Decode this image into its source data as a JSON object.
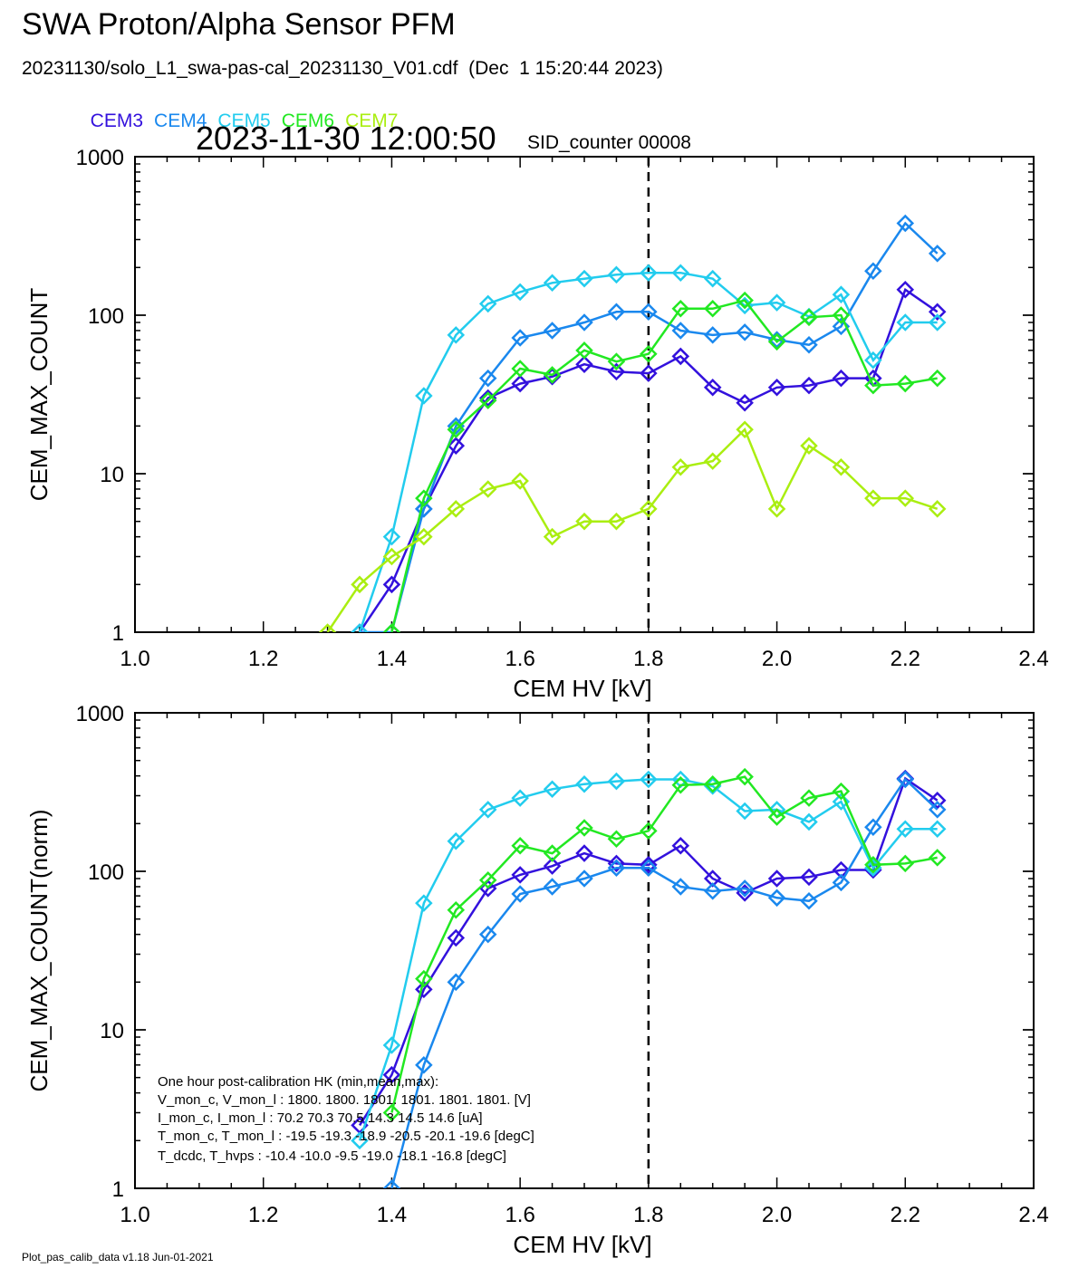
{
  "header": {
    "title": "SWA Proton/Alpha Sensor PFM",
    "subtitle": "20231130/solo_L1_swa-pas-cal_20231130_V01.cdf  (Dec  1 15:20:44 2023)",
    "timestamp": "2023-11-30 12:00:50",
    "sid_counter": "SID_counter 00008"
  },
  "legend": [
    {
      "label": "CEM3",
      "color": "#3311dd"
    },
    {
      "label": "CEM4",
      "color": "#1a88ee"
    },
    {
      "label": "CEM5",
      "color": "#22ccee"
    },
    {
      "label": "CEM6",
      "color": "#22e822"
    },
    {
      "label": "CEM7",
      "color": "#aaee11"
    }
  ],
  "hk_box": {
    "title": "One hour post-calibration HK (min,mean,max):",
    "rows": [
      "V_mon_c, V_mon_l :   1800.  1800.  1801.      1801.  1801.  1801.  [V]",
      "I_mon_c,  I_mon_l :     70.2   70.3   70.5        14.3   14.5   14.6  [uA]",
      "T_mon_c, T_mon_l :   -19.5  -19.3  -18.9       -20.5  -20.1  -19.6  [degC]",
      "T_dcdc,    T_hvps :     -10.4  -10.0   -9.5        -19.0  -18.1  -16.8  [degC]"
    ]
  },
  "footer": "Plot_pas_calib_data v1.18 Jun-01-2021",
  "chart_data": [
    {
      "type": "line",
      "title": "",
      "xlabel": "CEM HV [kV]",
      "ylabel": "CEM_MAX_COUNT",
      "xlim": [
        1.0,
        2.4
      ],
      "ylim": [
        1,
        1000
      ],
      "yscale": "log",
      "xticks": [
        "1.0",
        "1.2",
        "1.4",
        "1.6",
        "1.8",
        "2.0",
        "2.2",
        "2.4"
      ],
      "yticks": [
        "1",
        "10",
        "100",
        "1000"
      ],
      "vline_x": 1.8,
      "series": [
        {
          "name": "CEM3",
          "color": "#3311dd",
          "x": [
            1.35,
            1.4,
            1.45,
            1.5,
            1.55,
            1.6,
            1.65,
            1.7,
            1.75,
            1.8,
            1.85,
            1.9,
            1.95,
            2.0,
            2.05,
            2.1,
            2.15,
            2.2,
            2.25
          ],
          "y": [
            1,
            2,
            6,
            15,
            30,
            37,
            41,
            49,
            44,
            43,
            55,
            35,
            28,
            35,
            36,
            40,
            40,
            145,
            105
          ]
        },
        {
          "name": "CEM4",
          "color": "#1a88ee",
          "x": [
            1.35,
            1.4,
            1.45,
            1.5,
            1.55,
            1.6,
            1.65,
            1.7,
            1.75,
            1.8,
            1.85,
            1.9,
            1.95,
            2.0,
            2.05,
            2.1,
            2.15,
            2.2,
            2.25
          ],
          "y": [
            1,
            1,
            6,
            20,
            40,
            72,
            80,
            90,
            105,
            105,
            80,
            75,
            78,
            70,
            65,
            85,
            190,
            380,
            245
          ]
        },
        {
          "name": "CEM5",
          "color": "#22ccee",
          "x": [
            1.35,
            1.4,
            1.45,
            1.5,
            1.55,
            1.6,
            1.65,
            1.7,
            1.75,
            1.8,
            1.85,
            1.9,
            1.95,
            2.0,
            2.05,
            2.1,
            2.15,
            2.2,
            2.25
          ],
          "y": [
            1,
            4,
            31,
            75,
            118,
            140,
            160,
            170,
            180,
            185,
            185,
            170,
            115,
            120,
            98,
            135,
            52,
            90,
            90
          ]
        },
        {
          "name": "CEM6",
          "color": "#22e822",
          "x": [
            1.4,
            1.45,
            1.5,
            1.55,
            1.6,
            1.65,
            1.7,
            1.75,
            1.8,
            1.85,
            1.9,
            1.95,
            2.0,
            2.05,
            2.1,
            2.15,
            2.2,
            2.25
          ],
          "y": [
            1,
            7,
            19,
            29,
            46,
            42,
            60,
            51,
            57,
            110,
            110,
            124,
            68,
            97,
            100,
            36,
            37,
            40
          ]
        },
        {
          "name": "CEM7",
          "color": "#aaee11",
          "x": [
            1.3,
            1.35,
            1.4,
            1.45,
            1.5,
            1.55,
            1.6,
            1.65,
            1.7,
            1.75,
            1.8,
            1.85,
            1.9,
            1.95,
            2.0,
            2.05,
            2.1,
            2.15,
            2.2,
            2.25
          ],
          "y": [
            1,
            2,
            3,
            4,
            6,
            8,
            9,
            4,
            5,
            5,
            6,
            11,
            12,
            19,
            6,
            15,
            11,
            7,
            7,
            6
          ]
        }
      ]
    },
    {
      "type": "line",
      "title": "",
      "xlabel": "CEM HV [kV]",
      "ylabel": "CEM_MAX_COUNT(norm)",
      "xlim": [
        1.0,
        2.4
      ],
      "ylim": [
        1,
        1000
      ],
      "yscale": "log",
      "xticks": [
        "1.0",
        "1.2",
        "1.4",
        "1.6",
        "1.8",
        "2.0",
        "2.2",
        "2.4"
      ],
      "yticks": [
        "1",
        "10",
        "100",
        "1000"
      ],
      "vline_x": 1.8,
      "series": [
        {
          "name": "CEM3",
          "color": "#3311dd",
          "x": [
            1.35,
            1.4,
            1.45,
            1.5,
            1.55,
            1.6,
            1.65,
            1.7,
            1.75,
            1.8,
            1.85,
            1.9,
            1.95,
            2.0,
            2.05,
            2.1,
            2.15,
            2.2,
            2.25
          ],
          "y": [
            2.5,
            5.2,
            18,
            38,
            78,
            95,
            108,
            130,
            112,
            110,
            145,
            90,
            73,
            90,
            92,
            102,
            102,
            385,
            280
          ]
        },
        {
          "name": "CEM4",
          "color": "#1a88ee",
          "x": [
            1.4,
            1.45,
            1.5,
            1.55,
            1.6,
            1.65,
            1.7,
            1.75,
            1.8,
            1.85,
            1.9,
            1.95,
            2.0,
            2.05,
            2.1,
            2.15,
            2.2,
            2.25
          ],
          "y": [
            1,
            6,
            20,
            40,
            72,
            80,
            90,
            105,
            105,
            80,
            75,
            78,
            68,
            65,
            85,
            190,
            380,
            245
          ]
        },
        {
          "name": "CEM5",
          "color": "#22ccee",
          "x": [
            1.35,
            1.4,
            1.45,
            1.5,
            1.55,
            1.6,
            1.65,
            1.7,
            1.75,
            1.8,
            1.85,
            1.9,
            1.95,
            2.0,
            2.05,
            2.1,
            2.15,
            2.2,
            2.25
          ],
          "y": [
            2,
            8,
            63,
            155,
            245,
            290,
            330,
            355,
            370,
            380,
            380,
            345,
            240,
            245,
            205,
            275,
            105,
            185,
            185
          ]
        },
        {
          "name": "CEM6",
          "color": "#22e822",
          "x": [
            1.4,
            1.45,
            1.5,
            1.55,
            1.6,
            1.65,
            1.7,
            1.75,
            1.8,
            1.85,
            1.9,
            1.95,
            2.0,
            2.05,
            2.1,
            2.15,
            2.2,
            2.25
          ],
          "y": [
            3,
            21,
            57,
            88,
            145,
            130,
            188,
            160,
            180,
            350,
            355,
            395,
            220,
            290,
            320,
            110,
            112,
            122
          ]
        }
      ]
    }
  ]
}
